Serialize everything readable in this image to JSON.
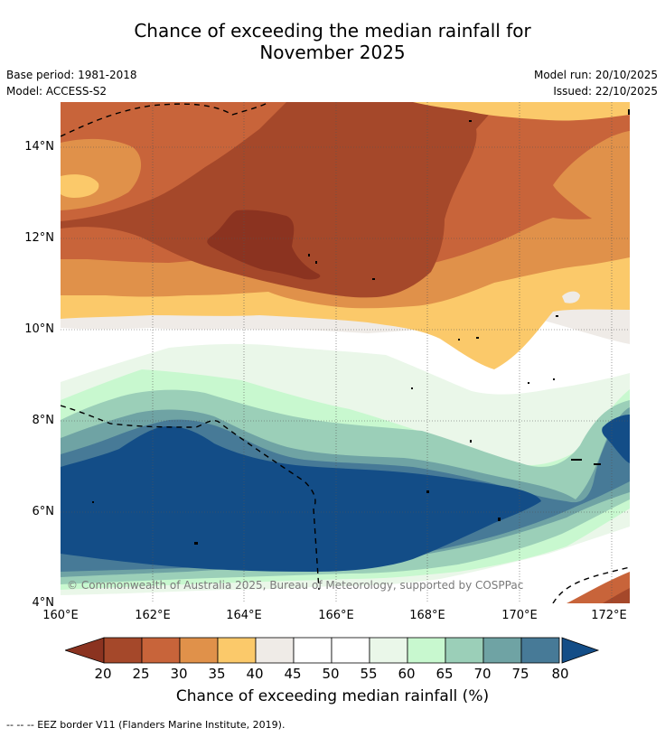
{
  "title_line1": "Chance of exceeding the median rainfall for",
  "title_line2": "November 2025",
  "base_period": "Base period: 1981-2018",
  "model": "Model: ACCESS-S2",
  "model_run": "Model run: 20/10/2025",
  "issued": "Issued: 22/10/2025",
  "copyright": "© Commonwealth of Australia 2025, Bureau of Meteorology, supported by COSPPac",
  "map": {
    "lat_labels": [
      "14°N",
      "12°N",
      "10°N",
      "8°N",
      "6°N",
      "4°N"
    ],
    "lon_labels": [
      "160°E",
      "162°E",
      "164°E",
      "166°E",
      "168°E",
      "170°E",
      "172°E"
    ],
    "lon_range": [
      160,
      172.4
    ],
    "lat_range": [
      4,
      15
    ]
  },
  "legend": {
    "ticks": [
      "20",
      "25",
      "30",
      "35",
      "40",
      "45",
      "50",
      "55",
      "60",
      "65",
      "70",
      "75",
      "80"
    ],
    "colors": [
      "#a5482a",
      "#c8643a",
      "#e0914a",
      "#fbc96a",
      "#efebe7",
      "#ffffff",
      "#ffffff",
      "#eaf7e9",
      "#c8f8cf",
      "#9bcfb8",
      "#6fa3a4",
      "#477a97"
    ],
    "under_color": "#8b3320",
    "over_color": "#134d87",
    "label": "Chance of exceeding median rainfall (%)"
  },
  "footnote": "--  --  -- EEZ border V11 (Flanders Marine Institute, 2019)."
}
